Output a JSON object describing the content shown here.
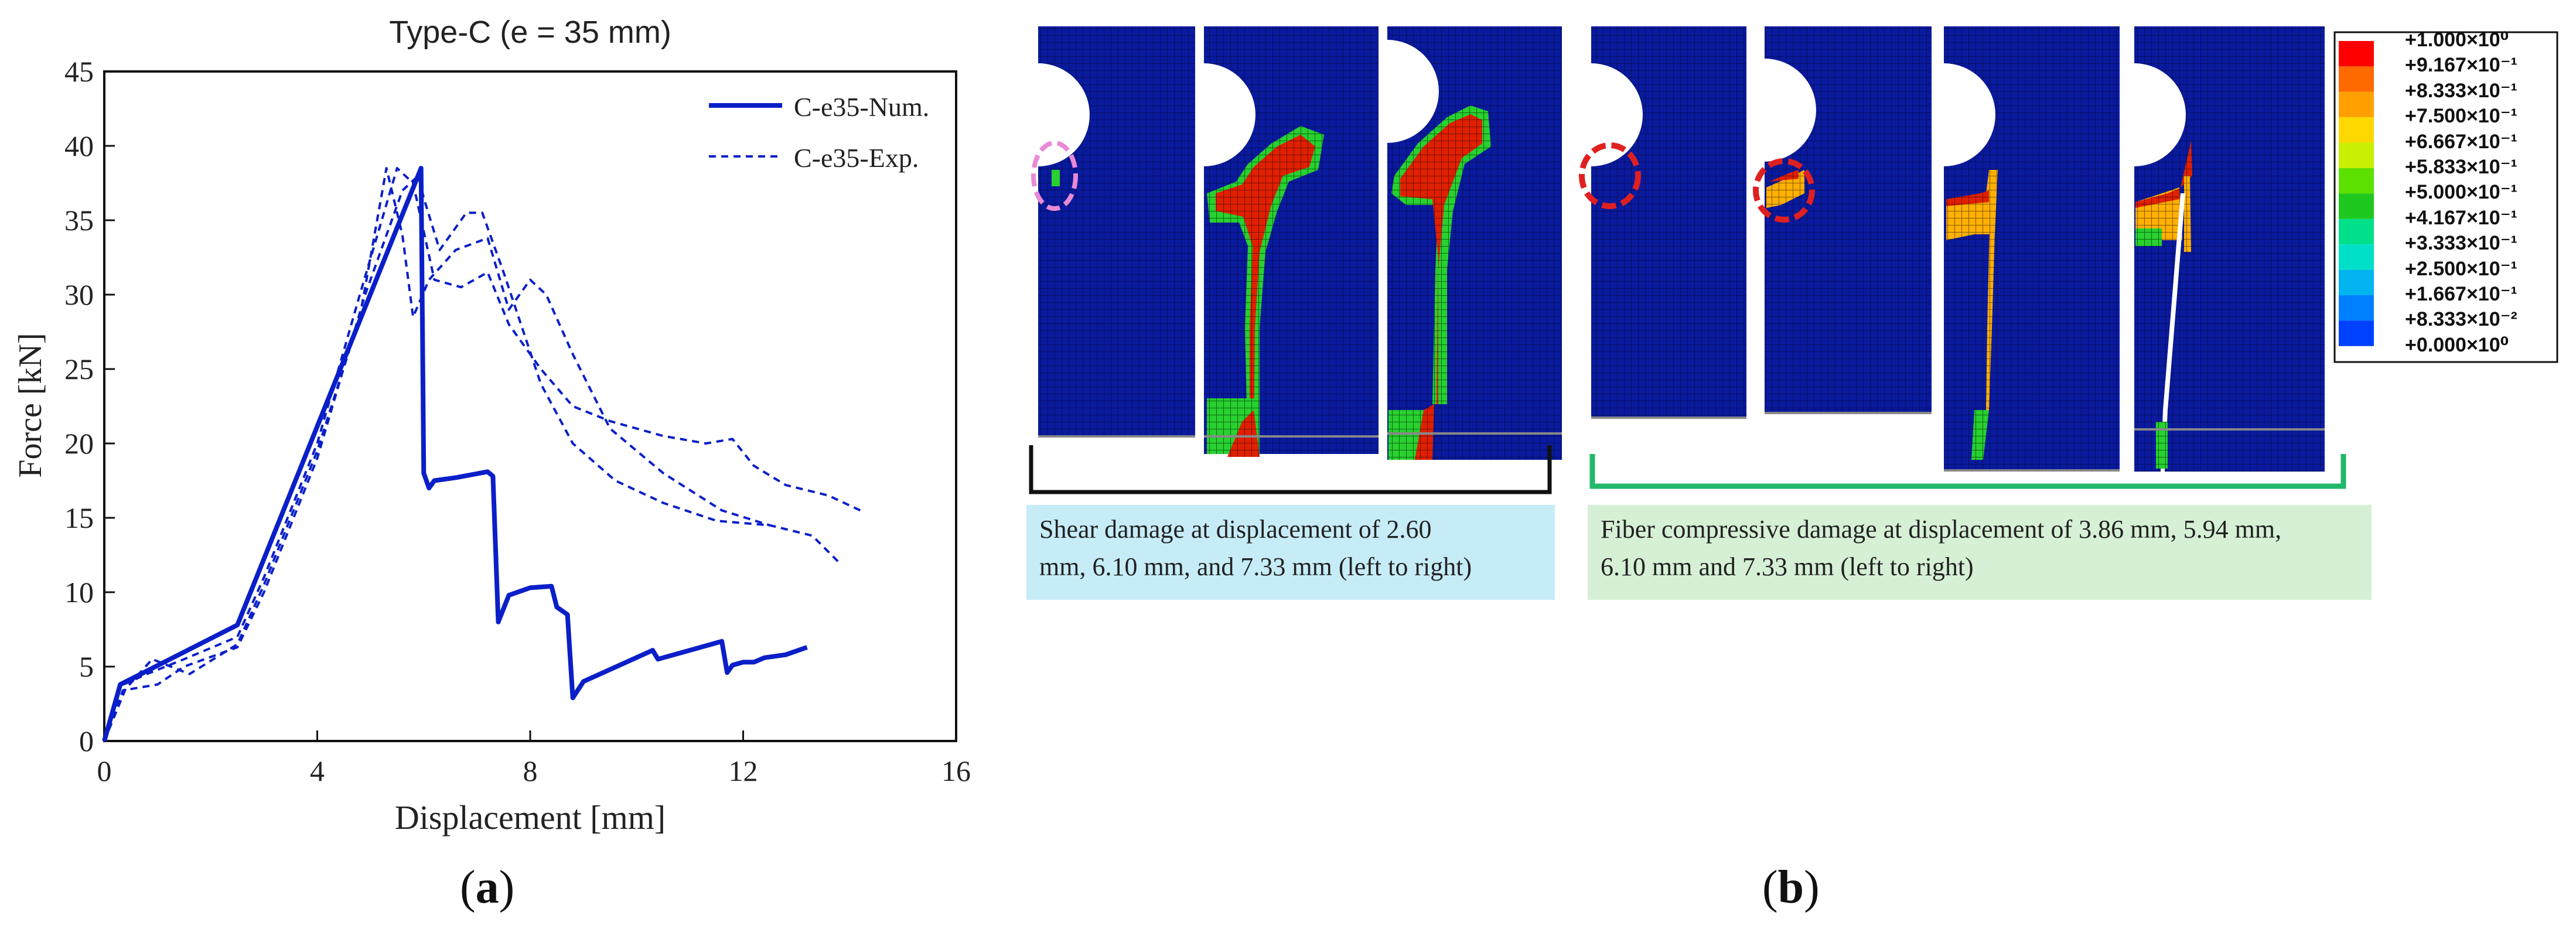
{
  "panel_a": {
    "label_open": "(",
    "label_letter": "a",
    "label_close": ")"
  },
  "panel_b": {
    "label_open": "(",
    "label_letter": "b",
    "label_close": ")",
    "shear_caption_line1": "Shear damage at displacement of 2.60",
    "shear_caption_line2": "mm, 6.10 mm, and 7.33 mm (left to right)",
    "fiber_caption_line1": "Fiber compressive damage at displacement of 3.86 mm, 5.94 mm,",
    "fiber_caption_line2": "6.10 mm and 7.33 mm (left to right)",
    "colors": {
      "mesh_blue": "#0a1a9e",
      "shear_box": "#c6ecf8",
      "fiber_box": "#d6f0d6",
      "shear_bracket": "#111111",
      "fiber_bracket": "#22b86a",
      "pink_marker": "#e98ad6",
      "red_marker": "#e02020"
    },
    "colorbar": {
      "labels": [
        "+1.000×10⁰",
        "+9.167×10⁻¹",
        "+8.333×10⁻¹",
        "+7.500×10⁻¹",
        "+6.667×10⁻¹",
        "+5.833×10⁻¹",
        "+5.000×10⁻¹",
        "+4.167×10⁻¹",
        "+3.333×10⁻¹",
        "+2.500×10⁻¹",
        "+1.667×10⁻¹",
        "+8.333×10⁻²",
        "+0.000×10⁰"
      ],
      "colors": [
        "#ff0000",
        "#ff6a00",
        "#ffa000",
        "#ffd800",
        "#c8f000",
        "#5ce000",
        "#1ec81e",
        "#00e08a",
        "#00e0c8",
        "#00b4f0",
        "#0080ff",
        "#0040ff"
      ]
    }
  },
  "chart_data": {
    "type": "line",
    "title": "Type-C (e = 35 mm)",
    "xlabel": "Displacement [mm]",
    "ylabel": "Force [kN]",
    "xlim": [
      0,
      16
    ],
    "ylim": [
      0,
      45
    ],
    "xticks": [
      0,
      4,
      8,
      12,
      16
    ],
    "yticks": [
      0,
      5,
      10,
      15,
      20,
      25,
      30,
      35,
      40,
      45
    ],
    "legend_position": "top-right",
    "color": "#0a1fc8",
    "series": [
      {
        "name": "C-e35-Num.",
        "style": "solid",
        "points": [
          [
            0,
            0
          ],
          [
            0.3,
            3.8
          ],
          [
            2.5,
            7.8
          ],
          [
            5.95,
            38.5
          ],
          [
            6.0,
            18
          ],
          [
            6.1,
            17
          ],
          [
            6.2,
            17.5
          ],
          [
            6.6,
            17.7
          ],
          [
            7.2,
            18.1
          ],
          [
            7.3,
            17.8
          ],
          [
            7.4,
            8.0
          ],
          [
            7.6,
            9.8
          ],
          [
            8.0,
            10.3
          ],
          [
            8.4,
            10.4
          ],
          [
            8.5,
            9.0
          ],
          [
            8.7,
            8.5
          ],
          [
            8.8,
            2.9
          ],
          [
            9.0,
            4.0
          ],
          [
            10.3,
            6.1
          ],
          [
            10.4,
            5.5
          ],
          [
            10.6,
            5.7
          ],
          [
            11.5,
            6.6
          ],
          [
            11.6,
            6.7
          ],
          [
            11.7,
            4.6
          ],
          [
            11.8,
            5.1
          ],
          [
            12.0,
            5.3
          ],
          [
            12.2,
            5.3
          ],
          [
            12.4,
            5.6
          ],
          [
            12.8,
            5.8
          ],
          [
            13.2,
            6.3
          ]
        ]
      },
      {
        "name": "C-e35-Exp.",
        "style": "dashed",
        "points": [
          [
            0,
            0
          ],
          [
            0.3,
            3.7
          ],
          [
            0.8,
            4.5
          ],
          [
            1.5,
            5.5
          ],
          [
            2.5,
            7.0
          ],
          [
            3.0,
            11.0
          ],
          [
            4.0,
            20.0
          ],
          [
            4.8,
            30.0
          ],
          [
            5.5,
            38.5
          ],
          [
            5.8,
            37.5
          ],
          [
            6.2,
            31.0
          ],
          [
            6.7,
            30.5
          ],
          [
            7.2,
            31.5
          ],
          [
            7.6,
            28.0
          ],
          [
            8.2,
            25.0
          ],
          [
            8.8,
            22.5
          ],
          [
            9.5,
            21.5
          ],
          [
            10.5,
            20.5
          ],
          [
            11.3,
            20.0
          ],
          [
            11.8,
            20.3
          ],
          [
            12.2,
            18.5
          ],
          [
            12.8,
            17.2
          ],
          [
            13.6,
            16.5
          ],
          [
            14.2,
            15.5
          ]
        ]
      },
      {
        "name": "",
        "style": "dashed",
        "points": [
          [
            0,
            0
          ],
          [
            0.35,
            3.4
          ],
          [
            1.0,
            3.8
          ],
          [
            1.5,
            5.0
          ],
          [
            2.5,
            6.3
          ],
          [
            3.0,
            10.0
          ],
          [
            4.0,
            19.0
          ],
          [
            4.9,
            30.0
          ],
          [
            5.6,
            37.0
          ],
          [
            5.9,
            38.0
          ],
          [
            6.0,
            36.5
          ],
          [
            6.3,
            33.0
          ],
          [
            6.8,
            35.5
          ],
          [
            7.1,
            35.5
          ],
          [
            7.5,
            31.5
          ],
          [
            8.2,
            24.0
          ],
          [
            8.8,
            20.0
          ],
          [
            9.6,
            17.5
          ],
          [
            10.5,
            16.0
          ],
          [
            11.5,
            14.8
          ],
          [
            12.5,
            14.5
          ],
          [
            13.3,
            13.8
          ],
          [
            13.8,
            12.0
          ]
        ]
      },
      {
        "name": "",
        "style": "dashed",
        "points": [
          [
            0,
            0
          ],
          [
            0.4,
            3.5
          ],
          [
            0.9,
            5.5
          ],
          [
            1.6,
            4.5
          ],
          [
            2.5,
            6.5
          ],
          [
            3.0,
            10.5
          ],
          [
            4.0,
            19.5
          ],
          [
            4.8,
            28.5
          ],
          [
            5.3,
            38.5
          ],
          [
            5.6,
            34.0
          ],
          [
            5.8,
            28.5
          ],
          [
            6.1,
            31.0
          ],
          [
            6.6,
            33.0
          ],
          [
            7.2,
            33.8
          ],
          [
            7.6,
            29.0
          ],
          [
            8.0,
            31.0
          ],
          [
            8.3,
            30.0
          ],
          [
            8.8,
            26.0
          ],
          [
            9.5,
            21.0
          ],
          [
            10.5,
            18.0
          ],
          [
            11.6,
            15.5
          ],
          [
            12.5,
            14.5
          ]
        ]
      }
    ]
  }
}
